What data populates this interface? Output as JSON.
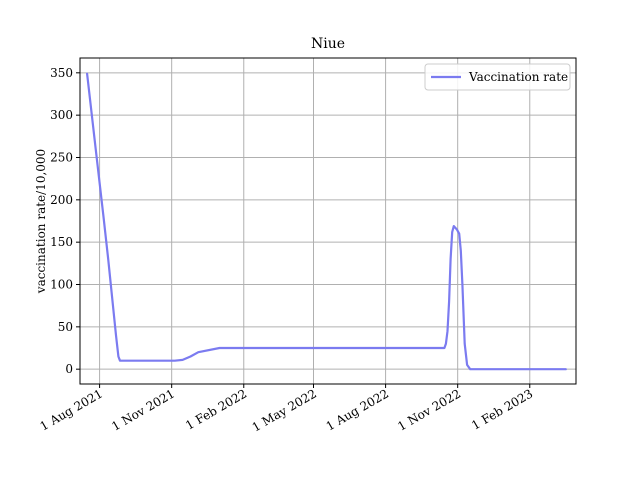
{
  "chart_data": {
    "type": "line",
    "title": "Niue",
    "xlabel": "",
    "ylabel": "vaccination rate/10,000",
    "x_ticks": [
      "2021-08-01",
      "2021-11-01",
      "2022-02-01",
      "2022-05-01",
      "2022-08-01",
      "2022-11-01",
      "2023-02-01"
    ],
    "x_tick_labels": [
      "1 Aug 2021",
      "1 Nov 2021",
      "1 Feb 2022",
      "1 May 2022",
      "1 Aug 2022",
      "1 Nov 2022",
      "1 Feb 2023"
    ],
    "xlim": [
      "2021-07-07",
      "2023-04-01"
    ],
    "ylim": [
      -17.5,
      367.5
    ],
    "y_ticks": [
      0,
      50,
      100,
      150,
      200,
      250,
      300,
      350
    ],
    "y_tick_labels": [
      "0",
      "50",
      "100",
      "150",
      "200",
      "250",
      "300",
      "350"
    ],
    "grid": true,
    "legend_position": "top-right",
    "colors": {
      "line": "#7b7bf0",
      "grid": "#b0b0b0"
    },
    "series": [
      {
        "name": "Vaccination rate",
        "x": [
          "2021-07-16",
          "2021-07-27",
          "2021-08-06",
          "2021-08-12",
          "2021-08-22",
          "2021-08-25",
          "2021-08-27",
          "2021-09-20",
          "2021-10-20",
          "2021-11-01",
          "2021-11-05",
          "2021-11-15",
          "2021-11-25",
          "2021-12-05",
          "2022-01-01",
          "2022-03-01",
          "2022-05-01",
          "2022-07-01",
          "2022-09-01",
          "2022-10-15",
          "2022-10-17",
          "2022-10-19",
          "2022-10-21",
          "2022-10-23",
          "2022-10-25",
          "2022-10-27",
          "2022-10-31",
          "2022-11-03",
          "2022-11-05",
          "2022-11-07",
          "2022-11-10",
          "2022-11-13",
          "2022-11-17",
          "2022-11-21",
          "2022-12-20",
          "2023-02-20",
          "2023-03-19"
        ],
        "y": [
          349,
          260,
          180,
          130,
          40,
          15,
          10,
          10,
          10,
          10,
          10,
          11,
          15,
          20,
          25,
          25,
          25,
          25,
          25,
          25,
          30,
          45,
          80,
          130,
          162,
          169,
          165,
          160,
          140,
          100,
          30,
          5,
          0,
          0,
          0,
          0,
          0
        ]
      }
    ]
  }
}
